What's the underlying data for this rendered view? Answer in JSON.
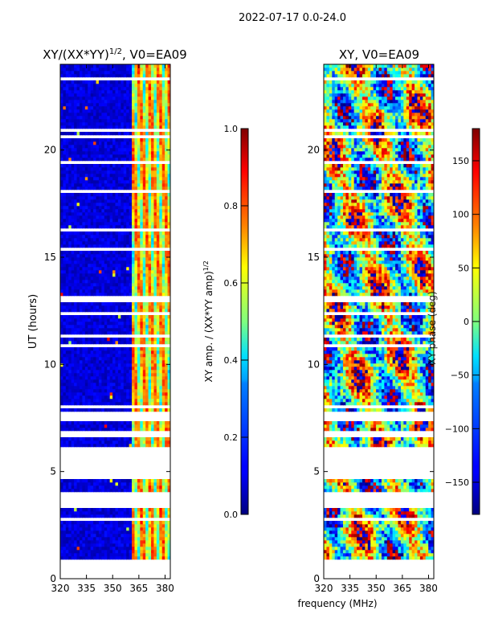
{
  "figure_title": "2022-07-17 0.0-24.0",
  "chart_data": [
    {
      "type": "heatmap",
      "title_main": "XY/(XX*YY)",
      "title_exp": "1/2",
      "title_tail": ", V0=EA09",
      "xlabel": "",
      "ylabel": "UT (hours)",
      "xlim": [
        320,
        383
      ],
      "ylim": [
        0,
        24
      ],
      "xticks": [
        320,
        335,
        350,
        365,
        380
      ],
      "yticks": [
        0,
        5,
        10,
        15,
        20
      ],
      "value_range": [
        0.0,
        1.0
      ],
      "bright_band_mhz": [
        361,
        383
      ],
      "data_gaps_hours": [
        [
          0.0,
          0.9
        ],
        [
          3.3,
          4.1
        ],
        [
          4.6,
          6.0
        ],
        [
          7.5,
          7.8
        ]
      ],
      "colorbar": {
        "label_main": "XY amp. / (XX*YY amp)",
        "label_exp": "1/2",
        "ticks": [
          0.0,
          0.2,
          0.4,
          0.6,
          0.8,
          1.0
        ],
        "tick_labels": [
          "0.0",
          "0.2",
          "0.4",
          "0.6",
          "0.8",
          "1.0"
        ],
        "range": [
          0.0,
          1.0
        ]
      }
    },
    {
      "type": "heatmap",
      "title": "XY, V0=EA09",
      "xlabel": "frequency (MHz)",
      "ylabel": "",
      "xlim": [
        320,
        383
      ],
      "ylim": [
        0,
        24
      ],
      "xticks": [
        320,
        335,
        350,
        365,
        380
      ],
      "yticks": [
        0,
        5,
        10,
        15,
        20
      ],
      "value_range": [
        -180,
        180
      ],
      "data_gaps_hours": [
        [
          0.0,
          0.9
        ],
        [
          3.3,
          4.1
        ],
        [
          4.6,
          6.0
        ],
        [
          7.5,
          7.8
        ]
      ],
      "colorbar": {
        "label": "XY phase (deg)",
        "ticks": [
          -150,
          -100,
          -50,
          0,
          50,
          100,
          150
        ],
        "tick_labels": [
          "−150",
          "−100",
          "−50",
          "0",
          "50",
          "100",
          "150"
        ],
        "range": [
          -180,
          180
        ]
      }
    }
  ]
}
